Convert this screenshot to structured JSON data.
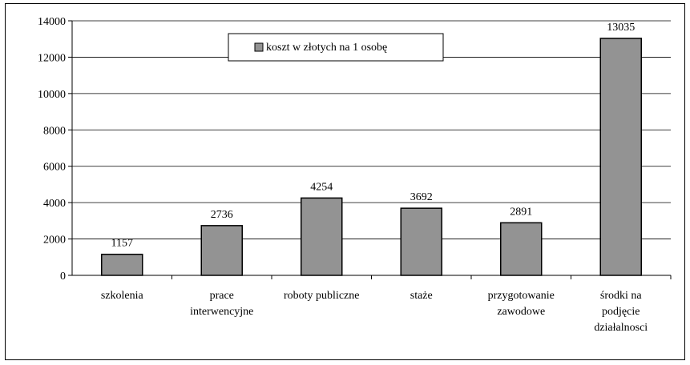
{
  "chart_data": {
    "type": "bar",
    "title": "",
    "xlabel": "",
    "ylabel": "",
    "ylim": [
      0,
      14000
    ],
    "yticks": [
      0,
      2000,
      4000,
      6000,
      8000,
      10000,
      12000,
      14000
    ],
    "grid": true,
    "legend_position": "top-center",
    "categories": [
      [
        "szkolenia"
      ],
      [
        "prace",
        "interwencyjne"
      ],
      [
        "roboty publiczne"
      ],
      [
        "staże"
      ],
      [
        "przygotowanie",
        "zawodowe"
      ],
      [
        "środki na",
        "podjęcie",
        "działalnosci"
      ]
    ],
    "series": [
      {
        "name": "koszt w złotych na 1 osobę",
        "color": "#939393",
        "values": [
          1157,
          2736,
          4254,
          3692,
          2891,
          13035
        ]
      }
    ]
  }
}
